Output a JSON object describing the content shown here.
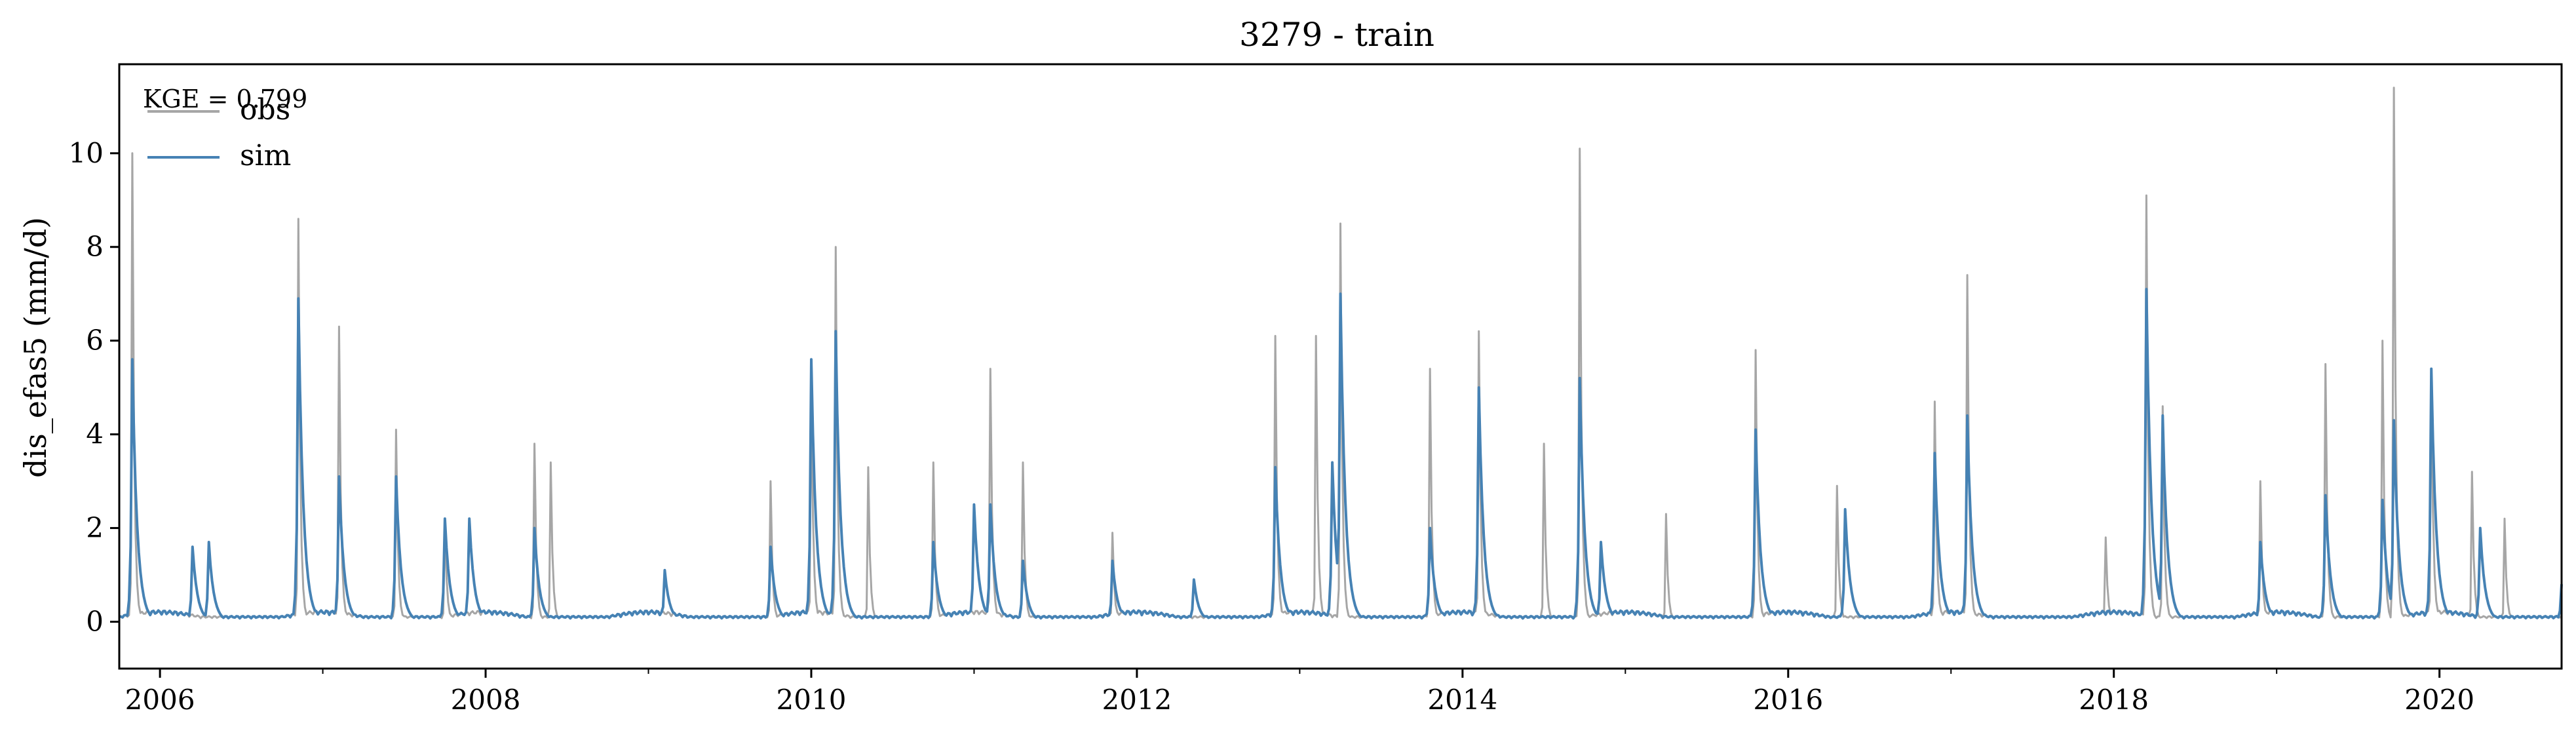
{
  "title": "3279 - train",
  "ylabel": "dis_efas5 (mm/d)",
  "annotation": "KGE = 0.799",
  "legend": [
    {
      "label": "obs",
      "color": "#a6a6a6"
    },
    {
      "label": "sim",
      "color": "#4682b4"
    }
  ],
  "chart_data": {
    "type": "line",
    "title": "3279 - train",
    "xlabel": "",
    "ylabel": "dis_efas5 (mm/d)",
    "xlim": [
      2005.75,
      2020.75
    ],
    "ylim": [
      -1,
      11.9
    ],
    "x_ticks": [
      2006,
      2008,
      2010,
      2012,
      2014,
      2016,
      2018,
      2020
    ],
    "x_tick_labels": [
      "2006",
      "2008",
      "2010",
      "2012",
      "2014",
      "2016",
      "2018",
      "2020"
    ],
    "y_ticks": [
      0,
      2,
      4,
      6,
      8,
      10
    ],
    "y_tick_labels": [
      "0",
      "2",
      "4",
      "6",
      "8",
      "10"
    ],
    "grid": false,
    "legend_position": "top-left",
    "series": [
      {
        "name": "obs",
        "color": "#a6a6a6",
        "peaks": [
          [
            2005.83,
            10.0
          ],
          [
            2006.85,
            8.6
          ],
          [
            2007.1,
            6.3
          ],
          [
            2007.45,
            4.1
          ],
          [
            2007.75,
            2.2
          ],
          [
            2008.3,
            3.8
          ],
          [
            2008.4,
            3.4
          ],
          [
            2009.75,
            3.0
          ],
          [
            2010.0,
            5.2
          ],
          [
            2010.15,
            8.0
          ],
          [
            2010.35,
            3.3
          ],
          [
            2010.75,
            3.4
          ],
          [
            2011.1,
            5.4
          ],
          [
            2011.3,
            3.4
          ],
          [
            2011.85,
            1.9
          ],
          [
            2012.85,
            6.1
          ],
          [
            2013.1,
            6.1
          ],
          [
            2013.25,
            8.5
          ],
          [
            2013.8,
            5.4
          ],
          [
            2014.1,
            6.2
          ],
          [
            2014.5,
            3.8
          ],
          [
            2014.72,
            10.1
          ],
          [
            2015.25,
            2.3
          ],
          [
            2015.8,
            5.8
          ],
          [
            2016.3,
            2.9
          ],
          [
            2016.9,
            4.7
          ],
          [
            2017.1,
            7.4
          ],
          [
            2017.95,
            1.8
          ],
          [
            2018.2,
            9.1
          ],
          [
            2018.3,
            4.6
          ],
          [
            2018.9,
            3.0
          ],
          [
            2019.3,
            5.5
          ],
          [
            2019.65,
            6.0
          ],
          [
            2019.72,
            11.4
          ],
          [
            2019.95,
            5.4
          ],
          [
            2020.2,
            3.2
          ],
          [
            2020.4,
            2.2
          ]
        ]
      },
      {
        "name": "sim",
        "color": "#4682b4",
        "peaks": [
          [
            2005.83,
            5.6
          ],
          [
            2006.2,
            1.6
          ],
          [
            2006.3,
            1.7
          ],
          [
            2006.85,
            6.9
          ],
          [
            2007.1,
            3.1
          ],
          [
            2007.45,
            3.1
          ],
          [
            2007.75,
            2.2
          ],
          [
            2007.9,
            2.2
          ],
          [
            2008.3,
            2.0
          ],
          [
            2009.1,
            1.1
          ],
          [
            2009.75,
            1.6
          ],
          [
            2010.0,
            5.6
          ],
          [
            2010.15,
            6.2
          ],
          [
            2010.75,
            1.7
          ],
          [
            2011.0,
            2.5
          ],
          [
            2011.1,
            2.5
          ],
          [
            2011.3,
            1.3
          ],
          [
            2011.85,
            1.3
          ],
          [
            2012.35,
            0.9
          ],
          [
            2012.85,
            3.3
          ],
          [
            2013.2,
            3.4
          ],
          [
            2013.25,
            7.0
          ],
          [
            2013.8,
            2.0
          ],
          [
            2014.1,
            5.0
          ],
          [
            2014.72,
            5.2
          ],
          [
            2014.85,
            1.7
          ],
          [
            2015.8,
            4.1
          ],
          [
            2016.35,
            2.4
          ],
          [
            2016.9,
            3.6
          ],
          [
            2017.1,
            4.4
          ],
          [
            2018.2,
            7.1
          ],
          [
            2018.3,
            4.4
          ],
          [
            2018.9,
            1.7
          ],
          [
            2019.3,
            2.7
          ],
          [
            2019.65,
            2.6
          ],
          [
            2019.72,
            4.3
          ],
          [
            2019.95,
            5.4
          ],
          [
            2020.25,
            2.0
          ],
          [
            2020.75,
            0.8
          ]
        ]
      }
    ]
  }
}
